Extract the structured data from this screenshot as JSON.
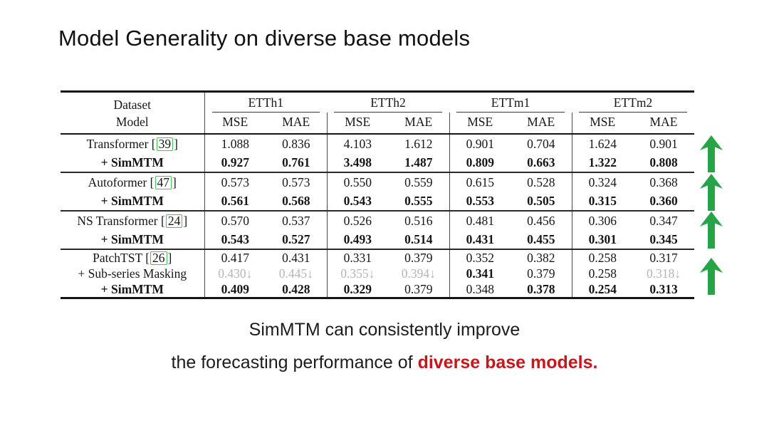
{
  "title": "Model Generality on diverse base models",
  "table": {
    "corner_top": "Dataset",
    "corner_bottom": "Model",
    "datasets": [
      "ETTh1",
      "ETTh2",
      "ETTm1",
      "ETTm2"
    ],
    "metrics": [
      "MSE",
      "MAE"
    ],
    "groups": [
      {
        "rows": [
          {
            "label": {
              "text": "Transformer",
              "cite": "39",
              "bold": false
            },
            "cells": [
              [
                "1.088",
                "n"
              ],
              [
                "0.836",
                "n"
              ],
              [
                "4.103",
                "n"
              ],
              [
                "1.612",
                "n"
              ],
              [
                "0.901",
                "n"
              ],
              [
                "0.704",
                "n"
              ],
              [
                "1.624",
                "n"
              ],
              [
                "0.901",
                "n"
              ]
            ]
          },
          {
            "label": {
              "text": "+ SimMTM",
              "bold": true
            },
            "cells": [
              [
                "0.927",
                "b"
              ],
              [
                "0.761",
                "b"
              ],
              [
                "3.498",
                "b"
              ],
              [
                "1.487",
                "b"
              ],
              [
                "0.809",
                "b"
              ],
              [
                "0.663",
                "b"
              ],
              [
                "1.322",
                "b"
              ],
              [
                "0.808",
                "b"
              ]
            ]
          }
        ]
      },
      {
        "rows": [
          {
            "label": {
              "text": "Autoformer",
              "cite": "47",
              "bold": false
            },
            "cells": [
              [
                "0.573",
                "n"
              ],
              [
                "0.573",
                "n"
              ],
              [
                "0.550",
                "n"
              ],
              [
                "0.559",
                "n"
              ],
              [
                "0.615",
                "n"
              ],
              [
                "0.528",
                "n"
              ],
              [
                "0.324",
                "n"
              ],
              [
                "0.368",
                "n"
              ]
            ]
          },
          {
            "label": {
              "text": "+ SimMTM",
              "bold": true
            },
            "cells": [
              [
                "0.561",
                "b"
              ],
              [
                "0.568",
                "b"
              ],
              [
                "0.543",
                "b"
              ],
              [
                "0.555",
                "b"
              ],
              [
                "0.553",
                "b"
              ],
              [
                "0.505",
                "b"
              ],
              [
                "0.315",
                "b"
              ],
              [
                "0.360",
                "b"
              ]
            ]
          }
        ]
      },
      {
        "rows": [
          {
            "label": {
              "text": "NS Transformer",
              "cite": "24",
              "bold": false
            },
            "cells": [
              [
                "0.570",
                "n"
              ],
              [
                "0.537",
                "n"
              ],
              [
                "0.526",
                "n"
              ],
              [
                "0.516",
                "n"
              ],
              [
                "0.481",
                "n"
              ],
              [
                "0.456",
                "n"
              ],
              [
                "0.306",
                "n"
              ],
              [
                "0.347",
                "n"
              ]
            ]
          },
          {
            "label": {
              "text": "+ SimMTM",
              "bold": true
            },
            "cells": [
              [
                "0.543",
                "b"
              ],
              [
                "0.527",
                "b"
              ],
              [
                "0.493",
                "b"
              ],
              [
                "0.514",
                "b"
              ],
              [
                "0.431",
                "b"
              ],
              [
                "0.455",
                "b"
              ],
              [
                "0.301",
                "b"
              ],
              [
                "0.345",
                "b"
              ]
            ]
          }
        ]
      },
      {
        "rows": [
          {
            "label": {
              "text": "PatchTST",
              "cite": "26",
              "bold": false
            },
            "cells": [
              [
                "0.417",
                "n"
              ],
              [
                "0.431",
                "n"
              ],
              [
                "0.331",
                "n"
              ],
              [
                "0.379",
                "n"
              ],
              [
                "0.352",
                "n"
              ],
              [
                "0.382",
                "n"
              ],
              [
                "0.258",
                "n"
              ],
              [
                "0.317",
                "n"
              ]
            ]
          },
          {
            "label": {
              "text": "+ Sub-series Masking",
              "bold": false
            },
            "cells": [
              [
                "0.430↓",
                "g"
              ],
              [
                "0.445↓",
                "g"
              ],
              [
                "0.355↓",
                "g"
              ],
              [
                "0.394↓",
                "g"
              ],
              [
                "0.341",
                "b"
              ],
              [
                "0.379",
                "n"
              ],
              [
                "0.258",
                "n"
              ],
              [
                "0.318↓",
                "g"
              ]
            ]
          },
          {
            "label": {
              "text": "+ SimMTM",
              "bold": true
            },
            "cells": [
              [
                "0.409",
                "b"
              ],
              [
                "0.428",
                "b"
              ],
              [
                "0.329",
                "b"
              ],
              [
                "0.379",
                "n"
              ],
              [
                "0.348",
                "n"
              ],
              [
                "0.378",
                "b"
              ],
              [
                "0.254",
                "b"
              ],
              [
                "0.313",
                "b"
              ]
            ]
          }
        ]
      }
    ]
  },
  "arrows": {
    "icon": "up-arrow",
    "count": 4,
    "color": "#27a348"
  },
  "caption": {
    "line1": "SimMTM can consistently improve",
    "line2_prefix": "the forecasting performance of ",
    "line2_highlight": "diverse base models."
  },
  "colors": {
    "highlight_red": "#c4181c",
    "arrow_green": "#27a348",
    "cite_box_green": "#3dcb4d",
    "muted_gray": "#b5b5b5"
  }
}
